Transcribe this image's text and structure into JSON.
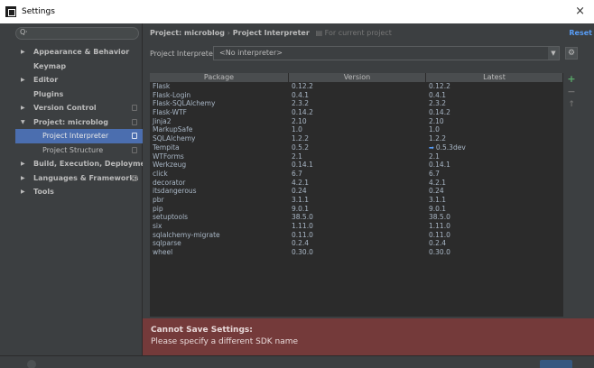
{
  "window": {
    "title": "Settings",
    "close_glyph": "×"
  },
  "search": {
    "icon": "search-icon",
    "glyph": "Q·"
  },
  "sidebar": {
    "items": [
      {
        "label": "Appearance & Behavior",
        "level": 0,
        "expandable": true,
        "expanded": false
      },
      {
        "label": "Keymap",
        "level": 0,
        "expandable": false
      },
      {
        "label": "Editor",
        "level": 0,
        "expandable": true,
        "expanded": false
      },
      {
        "label": "Plugins",
        "level": 0,
        "expandable": false
      },
      {
        "label": "Version Control",
        "level": 0,
        "expandable": true,
        "expanded": false,
        "project_icon": true
      },
      {
        "label": "Project: microblog",
        "level": 0,
        "expandable": true,
        "expanded": true,
        "project_icon": true
      },
      {
        "label": "Project Interpreter",
        "level": 1,
        "selected": true,
        "project_icon": true
      },
      {
        "label": "Project Structure",
        "level": 1,
        "project_icon": true
      },
      {
        "label": "Build, Execution, Deployment",
        "level": 0,
        "expandable": true,
        "expanded": false
      },
      {
        "label": "Languages & Frameworks",
        "level": 0,
        "expandable": true,
        "expanded": false,
        "project_icon": true
      },
      {
        "label": "Tools",
        "level": 0,
        "expandable": true,
        "expanded": false
      }
    ]
  },
  "breadcrumb": {
    "parent": "Project: microblog",
    "separator": "›",
    "current": "Project Interpreter",
    "scope_note": "For current project"
  },
  "reset_label": "Reset",
  "interpreter": {
    "label": "Project Interpreter:",
    "value": "<No interpreter>",
    "dropdown_glyph": "▼",
    "gear_glyph": "⚙"
  },
  "packages": {
    "columns": [
      "Package",
      "Version",
      "Latest"
    ],
    "rows": [
      {
        "package": "Flask",
        "version": "0.12.2",
        "latest": "0.12.2"
      },
      {
        "package": "Flask-Login",
        "version": "0.4.1",
        "latest": "0.4.1"
      },
      {
        "package": "Flask-SQLAlchemy",
        "version": "2.3.2",
        "latest": "2.3.2"
      },
      {
        "package": "Flask-WTF",
        "version": "0.14.2",
        "latest": "0.14.2"
      },
      {
        "package": "Jinja2",
        "version": "2.10",
        "latest": "2.10"
      },
      {
        "package": "MarkupSafe",
        "version": "1.0",
        "latest": "1.0"
      },
      {
        "package": "SQLAlchemy",
        "version": "1.2.2",
        "latest": "1.2.2"
      },
      {
        "package": "Tempita",
        "version": "0.5.2",
        "latest": "0.5.3dev",
        "upgrade": true
      },
      {
        "package": "WTForms",
        "version": "2.1",
        "latest": "2.1"
      },
      {
        "package": "Werkzeug",
        "version": "0.14.1",
        "latest": "0.14.1"
      },
      {
        "package": "click",
        "version": "6.7",
        "latest": "6.7"
      },
      {
        "package": "decorator",
        "version": "4.2.1",
        "latest": "4.2.1"
      },
      {
        "package": "itsdangerous",
        "version": "0.24",
        "latest": "0.24"
      },
      {
        "package": "pbr",
        "version": "3.1.1",
        "latest": "3.1.1"
      },
      {
        "package": "pip",
        "version": "9.0.1",
        "latest": "9.0.1"
      },
      {
        "package": "setuptools",
        "version": "38.5.0",
        "latest": "38.5.0"
      },
      {
        "package": "six",
        "version": "1.11.0",
        "latest": "1.11.0"
      },
      {
        "package": "sqlalchemy-migrate",
        "version": "0.11.0",
        "latest": "0.11.0"
      },
      {
        "package": "sqlparse",
        "version": "0.2.4",
        "latest": "0.2.4"
      },
      {
        "package": "wheel",
        "version": "0.30.0",
        "latest": "0.30.0"
      }
    ],
    "tools": {
      "add_glyph": "+",
      "remove_glyph": "−",
      "upgrade_glyph": "↑"
    }
  },
  "error": {
    "title": "Cannot Save Settings:",
    "message": "Please specify a different SDK name"
  },
  "colors": {
    "background": "#3c3f41",
    "table_background": "#2b2b2b",
    "selection": "#4b6eaf",
    "link": "#589df6",
    "error_banner": "#743a3a",
    "add_green": "#59a869"
  }
}
